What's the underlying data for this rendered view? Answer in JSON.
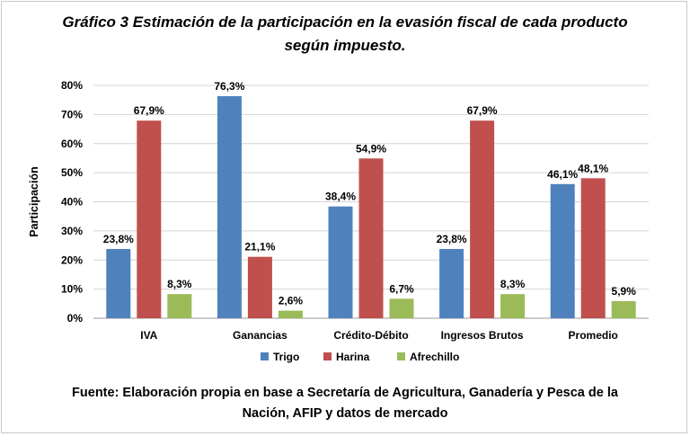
{
  "title": {
    "line1": "Gráfico 3 Estimación de la participación en la evasión fiscal de cada producto",
    "line2": "según impuesto."
  },
  "source": {
    "line1": "Fuente: Elaboración propia en base a Secretaría de Agricultura, Ganadería y Pesca de la",
    "line2": "Nación, AFIP y datos de mercado"
  },
  "chart_data": {
    "type": "bar",
    "ylabel": "Participación",
    "xlabel": "",
    "ylim": [
      0,
      80
    ],
    "yticks": [
      0,
      10,
      20,
      30,
      40,
      50,
      60,
      70,
      80
    ],
    "ytick_labels": [
      "0%",
      "10%",
      "20%",
      "30%",
      "40%",
      "50%",
      "60%",
      "70%",
      "80%"
    ],
    "grid": true,
    "legend_position": "bottom",
    "categories": [
      "IVA",
      "Ganancias",
      "Crédito-Débito",
      "Ingresos Brutos",
      "Promedio"
    ],
    "series": [
      {
        "name": "Trigo",
        "color": "#4F81BD",
        "values": [
          23.8,
          76.3,
          38.4,
          23.8,
          46.1
        ],
        "labels": [
          "23,8%",
          "76,3%",
          "38,4%",
          "23,8%",
          "46,1%"
        ]
      },
      {
        "name": "Harina",
        "color": "#C0504D",
        "values": [
          67.9,
          21.1,
          54.9,
          67.9,
          48.1
        ],
        "labels": [
          "67,9%",
          "21,1%",
          "54,9%",
          "67,9%",
          "48,1%"
        ]
      },
      {
        "name": "Afrechillo",
        "color": "#9BBB59",
        "values": [
          8.3,
          2.6,
          6.7,
          8.3,
          5.9
        ],
        "labels": [
          "8,3%",
          "2,6%",
          "6,7%",
          "8,3%",
          "5,9%"
        ]
      }
    ]
  }
}
